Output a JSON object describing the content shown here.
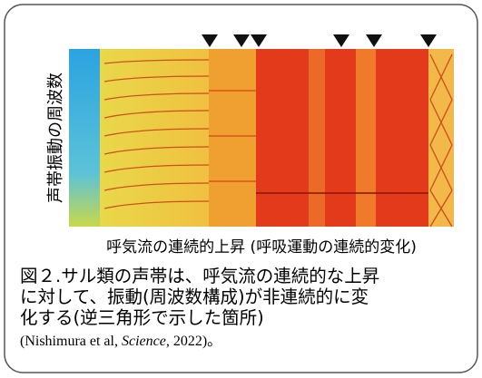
{
  "figure": {
    "y_axis_label": "声帯振動の周波数",
    "x_axis_label": "呼気流の連続的上昇 (呼吸運動の連続的変化)",
    "caption_lines": [
      "図２.サル類の声帯は、呼気流の連続的な上昇",
      "に対して、振動(周波数構成)が非連続的に変",
      "化する(逆三角形で示した箇所)"
    ],
    "citation": {
      "before": "(Nishimura et al, ",
      "journal": "Science",
      "after": ", 2022)。"
    }
  }
}
